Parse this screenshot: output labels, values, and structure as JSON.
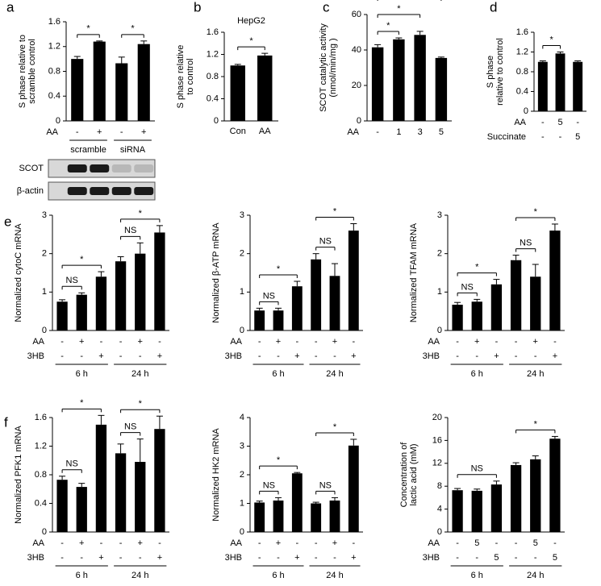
{
  "chart_data": [
    {
      "type": "bar",
      "panel": "a",
      "y_label": [
        "S phase relative to",
        "scramble control"
      ],
      "ylim": [
        0,
        1.6
      ],
      "yticks": [
        0,
        0.4,
        0.8,
        1.2,
        1.6
      ],
      "color": "#000000",
      "values": [
        1.0,
        1.28,
        0.93,
        1.24
      ],
      "errors": [
        0.04,
        0.01,
        0.1,
        0.05
      ],
      "rows": [
        {
          "name": "AA",
          "labels": [
            "-",
            "+",
            "-",
            "+"
          ]
        }
      ],
      "groups": [
        {
          "label": "scramble",
          "bars": [
            0,
            1
          ]
        },
        {
          "label": "siRNA",
          "bars": [
            2,
            3
          ]
        }
      ],
      "annotations": [
        {
          "text": "*",
          "bars": [
            0,
            1
          ]
        },
        {
          "text": "*",
          "bars": [
            2,
            3
          ]
        }
      ],
      "blot": [
        "SCOT",
        "β-actin"
      ]
    },
    {
      "type": "bar",
      "panel": "b",
      "title": "HepG2",
      "y_label": [
        "S phase relative",
        "to control"
      ],
      "ylim": [
        0,
        1.6
      ],
      "yticks": [
        0,
        0.4,
        0.8,
        1.2,
        1.6
      ],
      "color": "#000000",
      "categories": [
        "Con",
        "AA"
      ],
      "values": [
        1.0,
        1.18
      ],
      "errors": [
        0.02,
        0.04
      ],
      "annotations": [
        {
          "text": "*",
          "bars": [
            0,
            1
          ]
        }
      ]
    },
    {
      "type": "bar",
      "panel": "c",
      "y_label": [
        "SCOT catalytic activity",
        "(nmol/min/mg )"
      ],
      "ylim": [
        0,
        60
      ],
      "yticks": [
        0,
        20,
        40,
        60
      ],
      "color": "#000000",
      "values": [
        41.5,
        46,
        48.5,
        35.5
      ],
      "errors": [
        1.5,
        0.8,
        2,
        0.5
      ],
      "rows": [
        {
          "name": "AA",
          "labels": [
            "-",
            "1",
            "3",
            "5"
          ]
        }
      ],
      "annotations": [
        {
          "text": "*",
          "bars": [
            0,
            1
          ]
        },
        {
          "text": "*",
          "bars": [
            0,
            2
          ]
        },
        {
          "text": "*",
          "bars": [
            0,
            3
          ]
        }
      ]
    },
    {
      "type": "bar",
      "panel": "d",
      "y_label": [
        "S phase",
        "relative to control"
      ],
      "ylim": [
        0,
        1.6
      ],
      "yticks": [
        0,
        0.4,
        0.8,
        1.2,
        1.6
      ],
      "color": "#000000",
      "values": [
        1.0,
        1.17,
        1.0
      ],
      "errors": [
        0.02,
        0.03,
        0.02
      ],
      "rows": [
        {
          "name": "AA",
          "labels": [
            "-",
            "5",
            "-"
          ]
        },
        {
          "name": "Succinate",
          "labels": [
            "-",
            "-",
            "5"
          ]
        }
      ],
      "annotations": [
        {
          "text": "*",
          "bars": [
            0,
            1
          ]
        }
      ]
    },
    {
      "type": "bar",
      "panel": "e",
      "y_label": [
        "Normalized cytoC mRNA"
      ],
      "ylim": [
        0,
        3
      ],
      "yticks": [
        0,
        1,
        2,
        3
      ],
      "color": "#000000",
      "values": [
        0.75,
        0.93,
        1.4,
        1.8,
        2.0,
        2.55
      ],
      "errors": [
        0.05,
        0.05,
        0.13,
        0.12,
        0.28,
        0.18
      ],
      "rows": [
        {
          "name": "AA",
          "labels": [
            "-",
            "+",
            "-",
            "-",
            "+",
            "-"
          ]
        },
        {
          "name": "3HB",
          "labels": [
            "-",
            "-",
            "+",
            "-",
            "-",
            "+"
          ]
        }
      ],
      "groups": [
        {
          "label": "6 h",
          "bars": [
            0,
            1,
            2
          ]
        },
        {
          "label": "24 h",
          "bars": [
            3,
            4,
            5
          ]
        }
      ],
      "annotations": [
        {
          "text": "NS",
          "bars": [
            0,
            1
          ]
        },
        {
          "text": "*",
          "bars": [
            0,
            2
          ]
        },
        {
          "text": "NS",
          "bars": [
            3,
            4
          ]
        },
        {
          "text": "*",
          "bars": [
            3,
            5
          ]
        }
      ]
    },
    {
      "type": "bar",
      "y_label": [
        "Normalized β-ATP mRNA"
      ],
      "ylim": [
        0,
        3
      ],
      "yticks": [
        0,
        1,
        2,
        3
      ],
      "color": "#000000",
      "values": [
        0.52,
        0.52,
        1.15,
        1.85,
        1.42,
        2.6
      ],
      "errors": [
        0.06,
        0.06,
        0.13,
        0.15,
        0.32,
        0.18
      ],
      "rows": [
        {
          "name": "AA",
          "labels": [
            "-",
            "+",
            "-",
            "-",
            "+",
            "-"
          ]
        },
        {
          "name": "3HB",
          "labels": [
            "-",
            "-",
            "+",
            "-",
            "-",
            "+"
          ]
        }
      ],
      "groups": [
        {
          "label": "6 h",
          "bars": [
            0,
            1,
            2
          ]
        },
        {
          "label": "24 h",
          "bars": [
            3,
            4,
            5
          ]
        }
      ],
      "annotations": [
        {
          "text": "NS",
          "bars": [
            0,
            1
          ]
        },
        {
          "text": "*",
          "bars": [
            0,
            2
          ]
        },
        {
          "text": "NS",
          "bars": [
            3,
            4
          ]
        },
        {
          "text": "*",
          "bars": [
            3,
            5
          ]
        }
      ]
    },
    {
      "type": "bar",
      "y_label": [
        "Normalized TFAM mRNA"
      ],
      "ylim": [
        0,
        3
      ],
      "yticks": [
        0,
        1,
        2,
        3
      ],
      "color": "#000000",
      "values": [
        0.67,
        0.75,
        1.2,
        1.83,
        1.4,
        2.6
      ],
      "errors": [
        0.06,
        0.06,
        0.13,
        0.13,
        0.32,
        0.17
      ],
      "rows": [
        {
          "name": "AA",
          "labels": [
            "-",
            "+",
            "-",
            "-",
            "+",
            "-"
          ]
        },
        {
          "name": "3HB",
          "labels": [
            "-",
            "-",
            "+",
            "-",
            "-",
            "+"
          ]
        }
      ],
      "groups": [
        {
          "label": "6 h",
          "bars": [
            0,
            1,
            2
          ]
        },
        {
          "label": "24 h",
          "bars": [
            3,
            4,
            5
          ]
        }
      ],
      "annotations": [
        {
          "text": "NS",
          "bars": [
            0,
            1
          ]
        },
        {
          "text": "*",
          "bars": [
            0,
            2
          ]
        },
        {
          "text": "NS",
          "bars": [
            3,
            4
          ]
        },
        {
          "text": "*",
          "bars": [
            3,
            5
          ]
        }
      ]
    },
    {
      "type": "bar",
      "panel": "f",
      "y_label": [
        "Normalized PFK1 mRNA"
      ],
      "ylim": [
        0,
        1.6
      ],
      "yticks": [
        0,
        0.4,
        0.8,
        1.2,
        1.6
      ],
      "color": "#000000",
      "values": [
        0.73,
        0.63,
        1.5,
        1.1,
        0.98,
        1.44
      ],
      "errors": [
        0.05,
        0.05,
        0.13,
        0.13,
        0.32,
        0.18
      ],
      "rows": [
        {
          "name": "AA",
          "labels": [
            "-",
            "+",
            "-",
            "-",
            "+",
            "-"
          ]
        },
        {
          "name": "3HB",
          "labels": [
            "-",
            "-",
            "+",
            "-",
            "-",
            "+"
          ]
        }
      ],
      "groups": [
        {
          "label": "6 h",
          "bars": [
            0,
            1,
            2
          ]
        },
        {
          "label": "24 h",
          "bars": [
            3,
            4,
            5
          ]
        }
      ],
      "annotations": [
        {
          "text": "NS",
          "bars": [
            0,
            1
          ]
        },
        {
          "text": "*",
          "bars": [
            0,
            2
          ]
        },
        {
          "text": "NS",
          "bars": [
            3,
            4
          ]
        },
        {
          "text": "*",
          "bars": [
            3,
            5
          ]
        }
      ]
    },
    {
      "type": "bar",
      "y_label": [
        "Normalized HK2 mRNA"
      ],
      "ylim": [
        0,
        4
      ],
      "yticks": [
        0,
        1,
        2,
        3,
        4
      ],
      "color": "#000000",
      "values": [
        1.03,
        1.1,
        2.05,
        1.0,
        1.1,
        3.02
      ],
      "errors": [
        0.05,
        0.1,
        0.03,
        0.04,
        0.1,
        0.22
      ],
      "rows": [
        {
          "name": "AA",
          "labels": [
            "-",
            "+",
            "-",
            "-",
            "+",
            "-"
          ]
        },
        {
          "name": "3HB",
          "labels": [
            "-",
            "-",
            "+",
            "-",
            "-",
            "+"
          ]
        }
      ],
      "groups": [
        {
          "label": "6 h",
          "bars": [
            0,
            1,
            2
          ]
        },
        {
          "label": "24 h",
          "bars": [
            3,
            4,
            5
          ]
        }
      ],
      "annotations": [
        {
          "text": "NS",
          "bars": [
            0,
            1
          ]
        },
        {
          "text": "*",
          "bars": [
            0,
            2
          ]
        },
        {
          "text": "NS",
          "bars": [
            3,
            4
          ]
        },
        {
          "text": "*",
          "bars": [
            3,
            5
          ]
        }
      ]
    },
    {
      "type": "bar",
      "y_label": [
        "Concentration of",
        "lactic acid (mM)"
      ],
      "ylim": [
        0,
        20
      ],
      "yticks": [
        0,
        4,
        8,
        12,
        16,
        20
      ],
      "color": "#000000",
      "values": [
        7.3,
        7.2,
        8.3,
        11.7,
        12.7,
        16.3
      ],
      "errors": [
        0.3,
        0.3,
        0.6,
        0.4,
        0.6,
        0.4
      ],
      "rows": [
        {
          "name": "AA",
          "labels": [
            "-",
            "5",
            "-",
            "-",
            "5",
            "-"
          ]
        },
        {
          "name": "3HB",
          "labels": [
            "-",
            "-",
            "5",
            "-",
            "-",
            "5"
          ]
        }
      ],
      "groups": [
        {
          "label": "6 h",
          "bars": [
            0,
            1,
            2
          ]
        },
        {
          "label": "24 h",
          "bars": [
            3,
            4,
            5
          ]
        }
      ],
      "annotations": [
        {
          "text": "NS",
          "bars": [
            0,
            1,
            2
          ]
        },
        {
          "text": "*",
          "bars": [
            3,
            4,
            5
          ]
        }
      ]
    }
  ]
}
